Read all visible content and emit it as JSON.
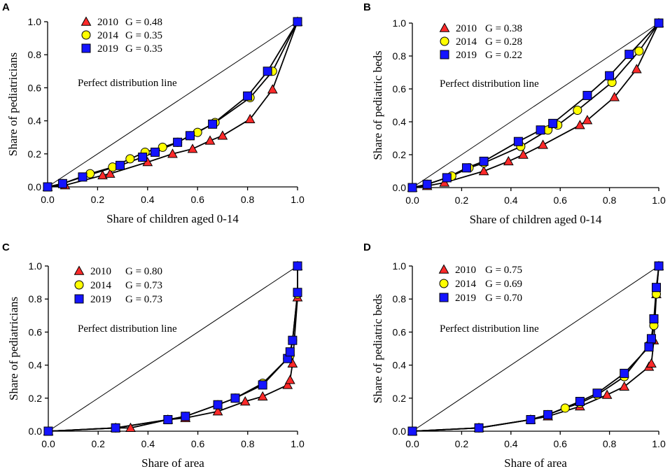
{
  "colors": {
    "2010": "#ff2a2a",
    "2014": "#ffff00",
    "2019": "#1414ff"
  },
  "chart_data": [
    {
      "panel": "A",
      "type": "line",
      "xlabel": "Share of children aged 0-14",
      "ylabel": "Share  of pediatricians",
      "xlim": [
        0,
        1
      ],
      "ylim": [
        0,
        1
      ],
      "xticks": [
        "0.0",
        "0.2",
        "0.4",
        "0.6",
        "0.8",
        "1.0"
      ],
      "yticks": [
        "0.0",
        "0.2",
        "0.4",
        "0.6",
        "0.8",
        "1.0"
      ],
      "annotation": "Perfect distribution line",
      "series": [
        {
          "name": "2010",
          "gini": "G = 0.48",
          "marker": "triangle",
          "x": [
            0,
            0.07,
            0.22,
            0.25,
            0.4,
            0.5,
            0.58,
            0.65,
            0.7,
            0.81,
            0.9,
            1.0
          ],
          "y": [
            0,
            0.01,
            0.07,
            0.08,
            0.15,
            0.2,
            0.23,
            0.28,
            0.31,
            0.41,
            0.59,
            1.0
          ]
        },
        {
          "name": "2014",
          "gini": "G = 0.35",
          "marker": "circle",
          "x": [
            0,
            0.06,
            0.17,
            0.26,
            0.33,
            0.39,
            0.46,
            0.52,
            0.57,
            0.6,
            0.67,
            0.81,
            0.9,
            1.0
          ],
          "y": [
            0,
            0.02,
            0.08,
            0.12,
            0.17,
            0.21,
            0.24,
            0.27,
            0.31,
            0.33,
            0.39,
            0.54,
            0.7,
            1.0
          ]
        },
        {
          "name": "2019",
          "gini": "G = 0.35",
          "marker": "square",
          "x": [
            0,
            0.06,
            0.14,
            0.29,
            0.38,
            0.43,
            0.52,
            0.57,
            0.66,
            0.8,
            0.88,
            1.0
          ],
          "y": [
            0,
            0.02,
            0.06,
            0.13,
            0.18,
            0.21,
            0.27,
            0.31,
            0.38,
            0.55,
            0.7,
            1.0
          ]
        }
      ]
    },
    {
      "panel": "B",
      "type": "line",
      "xlabel": "Share of children aged 0-14",
      "ylabel": "Share of pediatric beds",
      "xlim": [
        0,
        1
      ],
      "ylim": [
        0,
        1
      ],
      "xticks": [
        "0.0",
        "0.2",
        "0.4",
        "0.6",
        "0.8",
        "1.0"
      ],
      "yticks": [
        "0.0",
        "0.2",
        "0.4",
        "0.6",
        "0.8",
        "1.0"
      ],
      "annotation": "Perfect distribution line",
      "series": [
        {
          "name": "2010",
          "gini": "G = 0.38",
          "marker": "triangle",
          "x": [
            0,
            0.06,
            0.13,
            0.29,
            0.39,
            0.45,
            0.53,
            0.68,
            0.71,
            0.82,
            0.91,
            1.0
          ],
          "y": [
            0,
            0.01,
            0.03,
            0.1,
            0.16,
            0.2,
            0.26,
            0.38,
            0.41,
            0.55,
            0.72,
            1.0
          ]
        },
        {
          "name": "2014",
          "gini": "G = 0.28",
          "marker": "circle",
          "x": [
            0,
            0.06,
            0.16,
            0.23,
            0.29,
            0.44,
            0.55,
            0.59,
            0.67,
            0.81,
            0.92,
            1.0
          ],
          "y": [
            0,
            0.02,
            0.07,
            0.12,
            0.15,
            0.25,
            0.35,
            0.38,
            0.47,
            0.64,
            0.83,
            1.0
          ]
        },
        {
          "name": "2019",
          "gini": "G = 0.22",
          "marker": "square",
          "x": [
            0,
            0.06,
            0.14,
            0.22,
            0.29,
            0.43,
            0.52,
            0.57,
            0.71,
            0.8,
            0.88,
            1.0
          ],
          "y": [
            0,
            0.02,
            0.06,
            0.12,
            0.16,
            0.28,
            0.35,
            0.39,
            0.56,
            0.68,
            0.81,
            1.0
          ]
        }
      ]
    },
    {
      "panel": "C",
      "type": "line",
      "xlabel": "Share of area",
      "ylabel": "Share  of pediatricians",
      "xlim": [
        0,
        1
      ],
      "ylim": [
        0,
        1
      ],
      "xticks": [
        "0.0",
        "0.2",
        "0.4",
        "0.6",
        "0.8",
        "1.0"
      ],
      "yticks": [
        "0.0",
        "0.2",
        "0.4",
        "0.6",
        "0.8",
        "1.0"
      ],
      "annotation": "Perfect distribution line",
      "series": [
        {
          "name": "2010",
          "gini": "G = 0.80",
          "marker": "triangle",
          "x": [
            0,
            0.27,
            0.33,
            0.48,
            0.55,
            0.68,
            0.79,
            0.86,
            0.96,
            0.97,
            0.98,
            1.0,
            1.0
          ],
          "y": [
            0,
            0.02,
            0.02,
            0.07,
            0.08,
            0.12,
            0.18,
            0.21,
            0.28,
            0.31,
            0.41,
            0.81,
            1.0
          ]
        },
        {
          "name": "2014",
          "gini": "G = 0.73",
          "marker": "circle",
          "x": [
            0,
            0.27,
            0.48,
            0.55,
            0.68,
            0.75,
            0.86,
            0.96,
            0.97,
            0.98,
            1.0,
            1.0
          ],
          "y": [
            0,
            0.02,
            0.07,
            0.09,
            0.16,
            0.2,
            0.29,
            0.44,
            0.46,
            0.55,
            0.83,
            1.0
          ]
        },
        {
          "name": "2019",
          "gini": "G = 0.73",
          "marker": "square",
          "x": [
            0,
            0.27,
            0.48,
            0.55,
            0.68,
            0.75,
            0.86,
            0.96,
            0.97,
            0.98,
            1.0,
            1.0
          ],
          "y": [
            0,
            0.02,
            0.07,
            0.09,
            0.16,
            0.2,
            0.28,
            0.44,
            0.48,
            0.55,
            0.84,
            1.0
          ]
        }
      ]
    },
    {
      "panel": "D",
      "type": "line",
      "xlabel": "Share of area",
      "ylabel": "Share of pediatric beds",
      "xlim": [
        0,
        1
      ],
      "ylim": [
        0,
        1
      ],
      "xticks": [
        "0.0",
        "0.2",
        "0.4",
        "0.6",
        "0.8",
        "1.0"
      ],
      "yticks": [
        "0.0",
        "0.2",
        "0.4",
        "0.6",
        "0.8",
        "1.0"
      ],
      "annotation": "Perfect distribution line",
      "series": [
        {
          "name": "2010",
          "gini": "G = 0.75",
          "marker": "triangle",
          "x": [
            0,
            0.27,
            0.48,
            0.55,
            0.68,
            0.79,
            0.86,
            0.96,
            0.97,
            0.98,
            0.99,
            1.0
          ],
          "y": [
            0,
            0.02,
            0.07,
            0.09,
            0.15,
            0.22,
            0.27,
            0.39,
            0.41,
            0.55,
            0.83,
            1.0
          ]
        },
        {
          "name": "2014",
          "gini": "G = 0.69",
          "marker": "circle",
          "x": [
            0,
            0.27,
            0.48,
            0.55,
            0.62,
            0.68,
            0.75,
            0.86,
            0.96,
            0.97,
            0.98,
            0.99,
            1.0
          ],
          "y": [
            0,
            0.02,
            0.07,
            0.1,
            0.14,
            0.17,
            0.22,
            0.33,
            0.52,
            0.55,
            0.64,
            0.83,
            1.0
          ]
        },
        {
          "name": "2019",
          "gini": "G = 0.70",
          "marker": "square",
          "x": [
            0,
            0.27,
            0.48,
            0.55,
            0.68,
            0.75,
            0.86,
            0.96,
            0.97,
            0.98,
            0.99,
            1.0
          ],
          "y": [
            0,
            0.02,
            0.07,
            0.1,
            0.18,
            0.23,
            0.35,
            0.51,
            0.56,
            0.68,
            0.87,
            1.0
          ]
        }
      ]
    }
  ]
}
